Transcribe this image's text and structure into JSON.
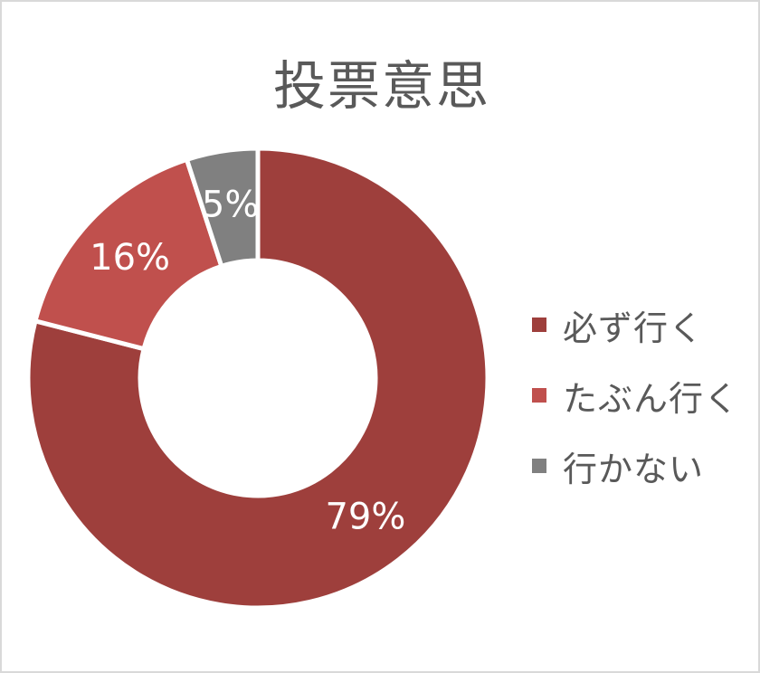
{
  "chart_data": {
    "type": "pie",
    "variant": "doughnut",
    "title": "投票意思",
    "categories": [
      "必ず行く",
      "たぶん行く",
      "行かない"
    ],
    "values": [
      79,
      16,
      5
    ],
    "data_labels": [
      "79%",
      "16%",
      "5%"
    ],
    "colors": [
      "#9e3f3c",
      "#c0504d",
      "#808080"
    ],
    "legend_position": "right"
  }
}
